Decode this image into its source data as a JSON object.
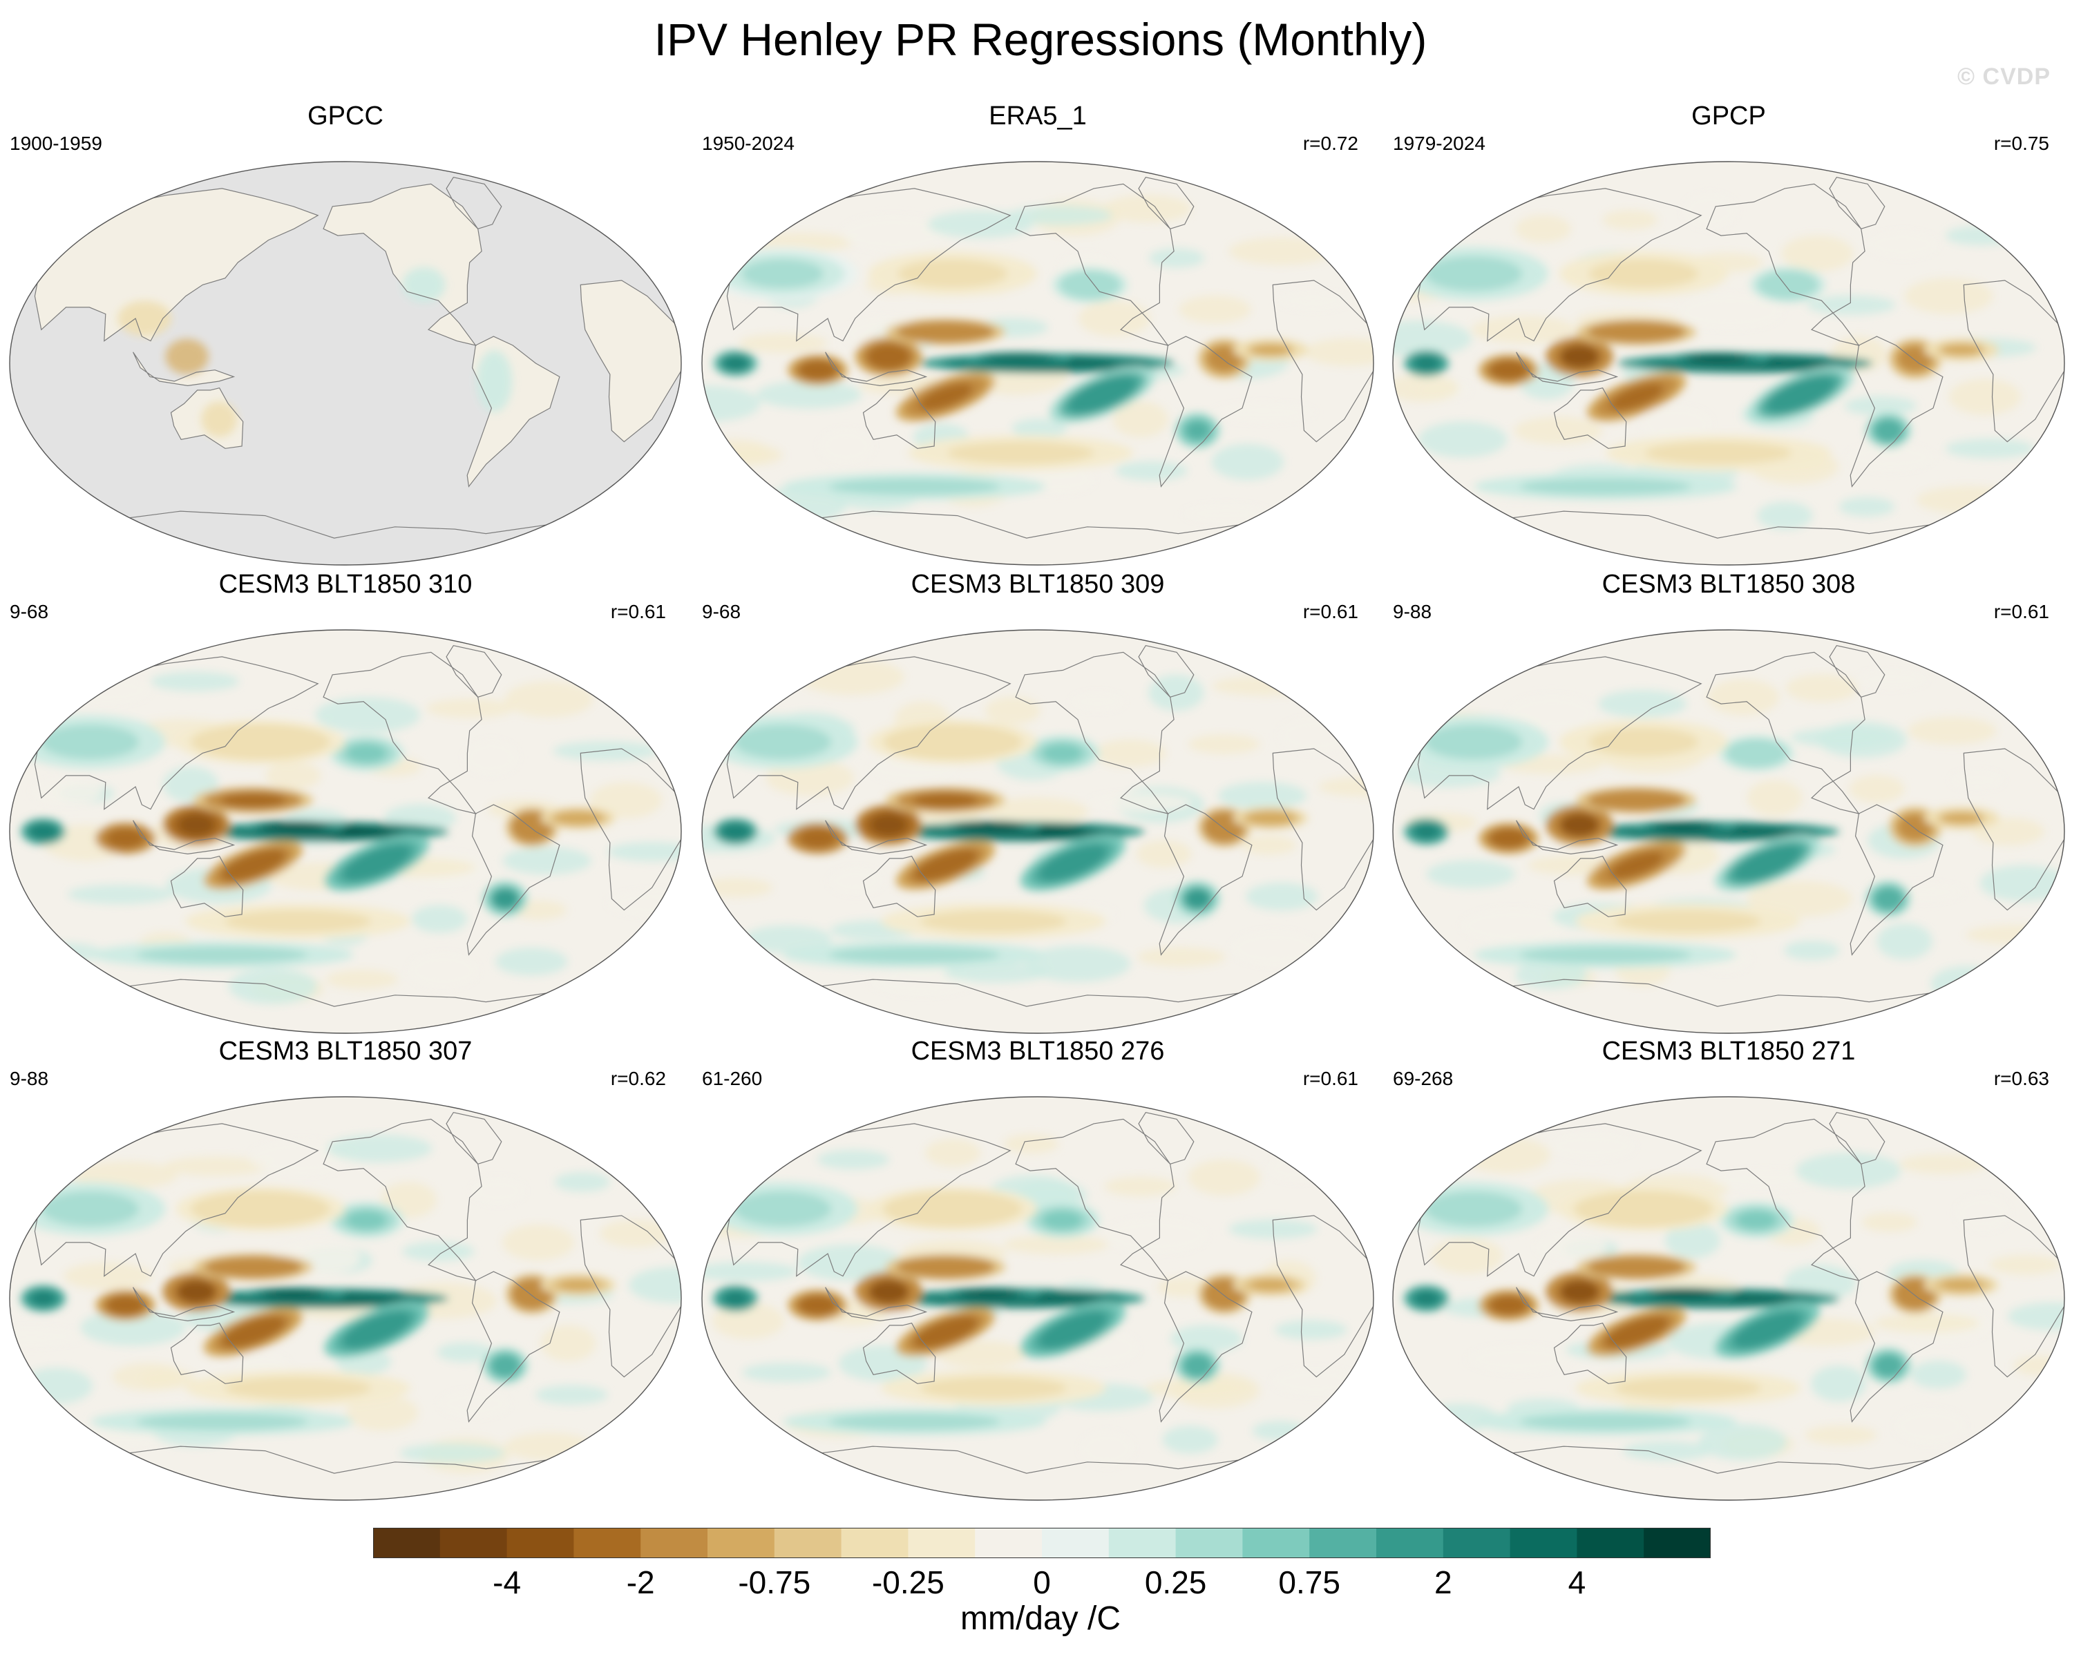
{
  "title": "IPV Henley PR Regressions (Monthly)",
  "watermark": "© CVDP",
  "panels": [
    {
      "name": "GPCC",
      "period": "1900-1959",
      "r": ""
    },
    {
      "name": "ERA5_1",
      "period": "1950-2024",
      "r": "r=0.72"
    },
    {
      "name": "GPCP",
      "period": "1979-2024",
      "r": "r=0.75"
    },
    {
      "name": "CESM3 BLT1850 310",
      "period": "9-68",
      "r": "r=0.61"
    },
    {
      "name": "CESM3 BLT1850 309",
      "period": "9-68",
      "r": "r=0.61"
    },
    {
      "name": "CESM3 BLT1850 308",
      "period": "9-88",
      "r": "r=0.61"
    },
    {
      "name": "CESM3 BLT1850 307",
      "period": "9-88",
      "r": "r=0.62"
    },
    {
      "name": "CESM3 BLT1850 276",
      "period": "61-260",
      "r": "r=0.61"
    },
    {
      "name": "CESM3 BLT1850 271",
      "period": "69-268",
      "r": "r=0.63"
    }
  ],
  "colorbar": {
    "units": "mm/day /C",
    "colors": [
      "#5b3510",
      "#754210",
      "#8c5213",
      "#a86b22",
      "#c18c42",
      "#d4aa61",
      "#e2c68b",
      "#efdfb3",
      "#f4ebcf",
      "#f4f1ea",
      "#e9f2ef",
      "#cdebe3",
      "#a8ddd2",
      "#7ecbbd",
      "#54b1a3",
      "#359a8c",
      "#1e8276",
      "#0b6c5f",
      "#035346",
      "#003c31"
    ],
    "tick_labels": [
      "-4",
      "-2",
      "-0.75",
      "-0.25",
      "0",
      "0.25",
      "0.75",
      "2",
      "4"
    ]
  },
  "chart_data": {
    "type": "heatmap",
    "title": "IPV Henley PR Regressions (Monthly)",
    "variable": "precipitation regression on IPV Henley index",
    "units": "mm/day /C",
    "projection": "Robinson-like global map, Pacific-centered",
    "colorbar_ticks": [
      -4,
      -2,
      -0.75,
      -0.25,
      0,
      0.25,
      0.75,
      2,
      4
    ],
    "panels": [
      {
        "dataset": "GPCC",
        "period": "1900-1959",
        "pattern_r": null,
        "coverage": "land only"
      },
      {
        "dataset": "ERA5_1",
        "period": "1950-2024",
        "pattern_r": 0.72
      },
      {
        "dataset": "GPCP",
        "period": "1979-2024",
        "pattern_r": 0.75
      },
      {
        "dataset": "CESM3 BLT1850 310",
        "period": "9-68",
        "pattern_r": 0.61
      },
      {
        "dataset": "CESM3 BLT1850 309",
        "period": "9-68",
        "pattern_r": 0.61
      },
      {
        "dataset": "CESM3 BLT1850 308",
        "period": "9-88",
        "pattern_r": 0.61
      },
      {
        "dataset": "CESM3 BLT1850 307",
        "period": "9-88",
        "pattern_r": 0.62
      },
      {
        "dataset": "CESM3 BLT1850 276",
        "period": "61-260",
        "pattern_r": 0.61
      },
      {
        "dataset": "CESM3 BLT1850 271",
        "period": "69-268",
        "pattern_r": 0.63
      }
    ]
  }
}
